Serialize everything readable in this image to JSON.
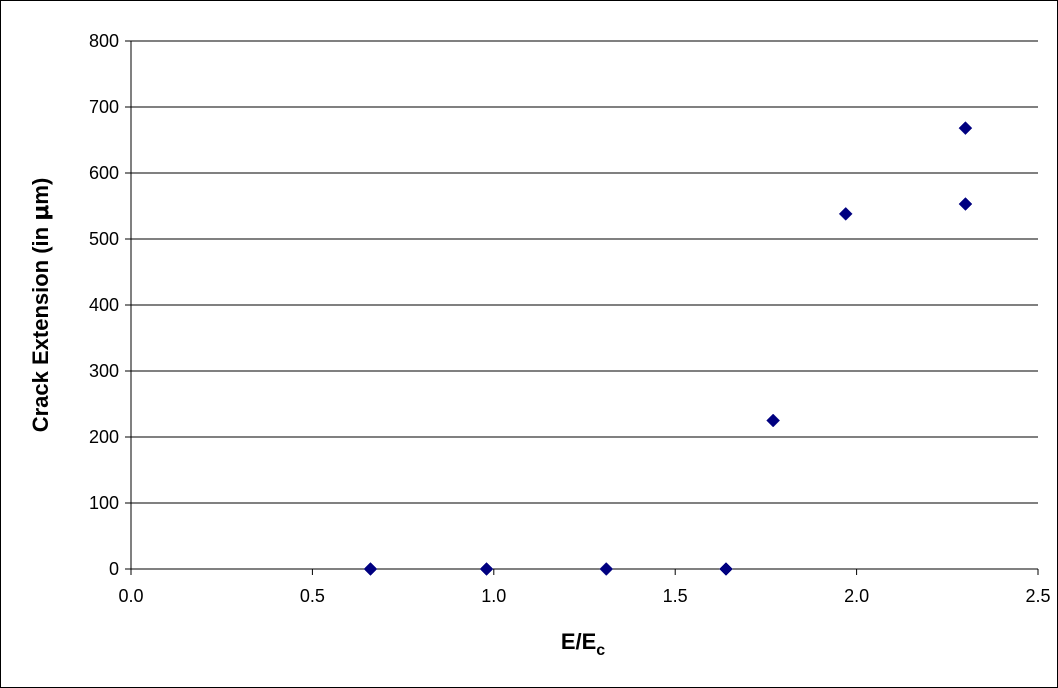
{
  "chart_data": {
    "type": "scatter",
    "title": "",
    "xlabel": "E/E",
    "xlabel_subscript": "c",
    "ylabel": "Crack Extension (in ",
    "ylabel_symbol": "μ",
    "ylabel_tail": "m)",
    "xlim": [
      0,
      2.5
    ],
    "ylim": [
      0,
      800
    ],
    "x_ticks": [
      "0.0",
      "0.5",
      "1.0",
      "1.5",
      "2.0",
      "2.5"
    ],
    "y_ticks": [
      "0",
      "100",
      "200",
      "300",
      "400",
      "500",
      "600",
      "700",
      "800"
    ],
    "grid": "horizontal",
    "legend": "none",
    "marker": "diamond",
    "marker_color": "#000080",
    "series": [
      {
        "points": [
          {
            "x": 0.66,
            "y": 0
          },
          {
            "x": 0.98,
            "y": 0
          },
          {
            "x": 1.31,
            "y": 0
          },
          {
            "x": 1.64,
            "y": 0
          },
          {
            "x": 1.77,
            "y": 225
          },
          {
            "x": 1.97,
            "y": 538
          },
          {
            "x": 2.3,
            "y": 553
          },
          {
            "x": 2.3,
            "y": 668
          }
        ]
      }
    ]
  }
}
